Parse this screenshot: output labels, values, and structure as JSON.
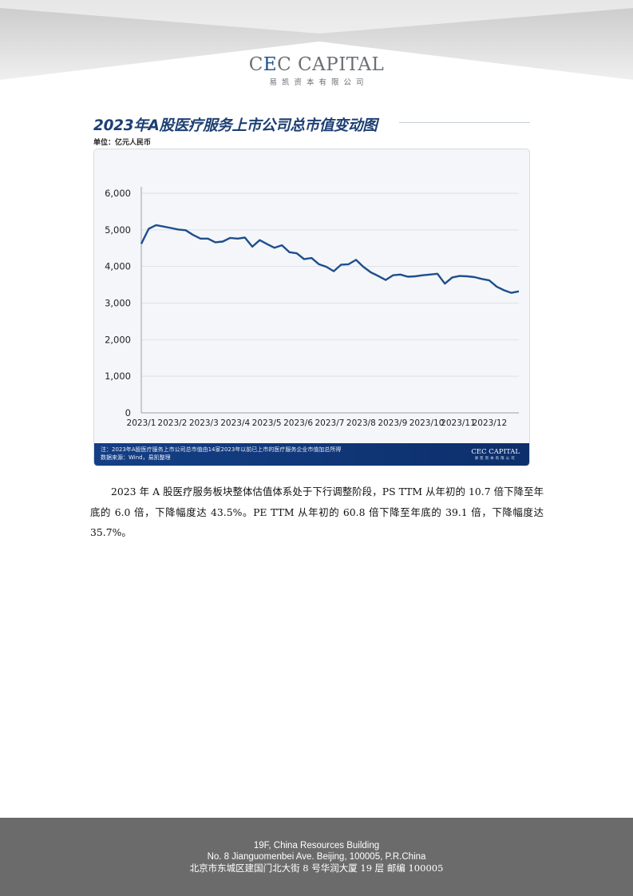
{
  "header": {
    "logo_main_pre": "C",
    "logo_main_e": "E",
    "logo_main_post": "C CAPITAL",
    "logo_sub": "易凯资本有限公司"
  },
  "figure": {
    "title": "2023年A股医疗服务上市公司总市值变动图",
    "unit": "单位：亿元人民币",
    "note": "注：2023年A股医疗服务上市公司总市值由14家2023年以前已上市的医疗服务企业市值加总所得",
    "source": "数据来源：Wind，易凯整理",
    "footer_logo_main": "CEC CAPITAL",
    "footer_logo_sub": "易凯资本有限公司"
  },
  "chart_data": {
    "type": "line",
    "title": "2023年A股医疗服务上市公司总市值变动图",
    "ylabel": "单位：亿元人民币",
    "xlabel": "",
    "ylim": [
      0,
      6000
    ],
    "yticks": [
      "0",
      "1,000",
      "2,000",
      "3,000",
      "4,000",
      "5,000",
      "6,000"
    ],
    "xticks": [
      "2023/1",
      "2023/2",
      "2023/3",
      "2023/4",
      "2023/5",
      "2023/6",
      "2023/7",
      "2023/8",
      "2023/9",
      "2023/10",
      "2023/11",
      "2023/12"
    ],
    "grid": true,
    "line_color": "#1f4e8c",
    "series": [
      {
        "values": [
          4620,
          5030,
          5130,
          5090,
          5050,
          5010,
          4990,
          4860,
          4760,
          4760,
          4660,
          4680,
          4780,
          4760,
          4790,
          4540,
          4720,
          4610,
          4510,
          4580,
          4390,
          4360,
          4200,
          4230,
          4060,
          3990,
          3870,
          4050,
          4060,
          4180,
          3990,
          3840,
          3740,
          3630,
          3760,
          3780,
          3720,
          3730,
          3760,
          3780,
          3800,
          3530,
          3700,
          3740,
          3730,
          3710,
          3660,
          3620,
          3450,
          3350,
          3280,
          3320
        ]
      }
    ]
  },
  "body": {
    "paragraph": "2023 年 A 股医疗服务板块整体估值体系处于下行调整阶段，PS TTM 从年初的 10.7 倍下降至年底的 6.0 倍，下降幅度达 43.5%。PE TTM 从年初的 60.8 倍下降至年底的 39.1 倍，下降幅度达 35.7%。"
  },
  "footer": {
    "line1": "19F, China Resources Building",
    "line2": "No. 8 Jianguomenbei Ave. Beijing, 100005, P.R.China",
    "line3": "北京市东城区建国门北大街 8 号华润大厦 19 层  邮编  100005"
  }
}
